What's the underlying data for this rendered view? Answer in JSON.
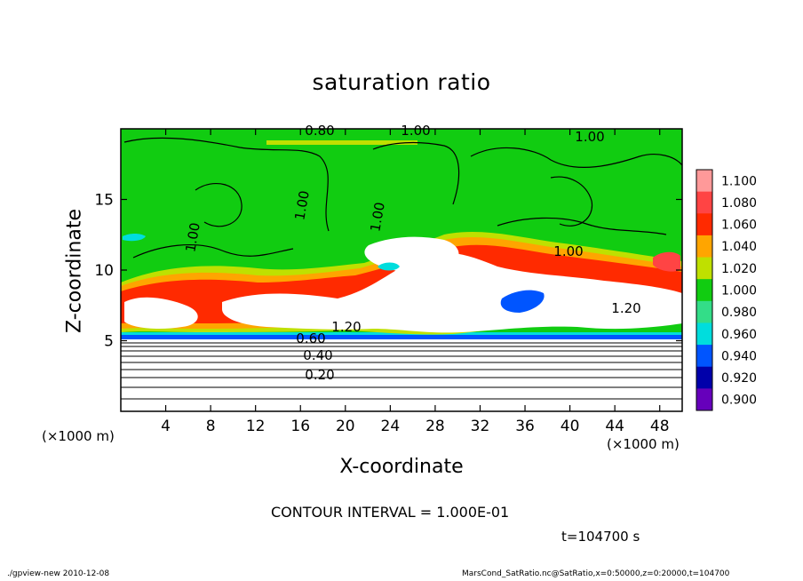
{
  "chart_data": {
    "type": "heatmap",
    "title": "saturation ratio",
    "xlabel": "X-coordinate",
    "ylabel": "Z-coordinate",
    "x_unit_note": "(×1000 m)",
    "z_unit_note": "(×1000 m)",
    "xlim": [
      0,
      50
    ],
    "ylim": [
      0,
      20
    ],
    "x_ticks": [
      4,
      8,
      12,
      16,
      20,
      24,
      28,
      32,
      36,
      40,
      44,
      48
    ],
    "y_ticks": [
      5,
      10,
      15
    ],
    "colorbar": {
      "values": [
        1.1,
        1.08,
        1.06,
        1.04,
        1.02,
        1.0,
        0.98,
        0.96,
        0.94,
        0.92,
        0.9
      ],
      "labels": [
        "1.100",
        "1.080",
        "1.060",
        "1.040",
        "1.020",
        "1.000",
        "0.980",
        "0.960",
        "0.940",
        "0.920",
        "0.900"
      ],
      "colors": [
        "#ff9999",
        "#ff4444",
        "#ff2a00",
        "#ffa500",
        "#bfe000",
        "#11cc11",
        "#33dd88",
        "#00dddd",
        "#0055ff",
        "#0000aa",
        "#6600bb"
      ]
    },
    "contour_labels": [
      "0.80",
      "1.00",
      "1.00",
      "1.00",
      "1.00",
      "1.00",
      "1.00",
      "1.20",
      "1.20",
      "0.60",
      "0.40",
      "0.20"
    ],
    "contour_interval_text": "CONTOUR INTERVAL = 1.000E-01",
    "time_text": "t=104700 s"
  },
  "footer": {
    "left": "./gpview-new   2010-12-08",
    "right": "MarsCond_SatRatio.nc@SatRatio,x=0:50000,z=0:20000,t=104700"
  },
  "colors": {
    "green": "#11cc11",
    "white": "#ffffff",
    "red": "#ff2a00",
    "orange": "#ffa500",
    "yellow_green": "#bfe000",
    "cyan": "#00dddd",
    "blue": "#0055ff"
  }
}
